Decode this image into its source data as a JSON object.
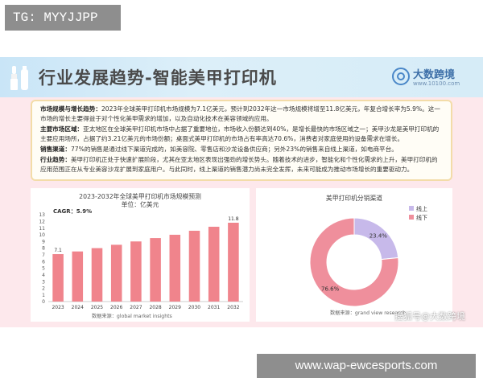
{
  "overlay": {
    "top_label": "TG: MYYJJPP",
    "bottom_url": "www.wap-ewcesports.com",
    "watermark": "搜狐号@大数跨境"
  },
  "banner": {
    "title": "行业发展趋势-智能美甲打印机",
    "brand_name": "大数跨境",
    "brand_url": "www.10100.com"
  },
  "summary": [
    {
      "label": "市场规模与增长趋势：",
      "text": "2023年全球美甲打印机市场规模为7.1亿美元，预计到2032年这一市场规模将增至11.8亿美元，年复合增长率为5.9%。这一市场的增长主要得益于对个性化美甲需求的增加，以及自动化技术在美容领域的应用。"
    },
    {
      "label": "主要市场区域：",
      "text": "亚太地区在全球美甲打印机市场中占据了重要地位，市场收入份额达到40%，是增长最快的市场区域之一；美甲沙龙是美甲打印机的主要应用场所，占据了约3.21亿美元的市场份额；桌面式美甲打印机的市场占有率高达70.6%，消费者对家庭使用的设备需求在增长。"
    },
    {
      "label": "销售渠道：",
      "text": "77%的销售是通过线下渠道完成的，如美容院、零售店和沙龙设备供应商；另外23%的销售来自线上渠道，如电商平台。"
    },
    {
      "label": "行业趋势：",
      "text": "美甲打印机正处于快速扩展阶段，尤其在亚太地区表现出强劲的增长势头。随着技术的进步，智能化和个性化需求的上升，美甲打印机的应用范围正在从专业美容沙龙扩展到家庭用户。与此同时，线上渠道的销售潜力尚未完全发挥，未来可能成为推动市场增长的重要驱动力。"
    }
  ],
  "bar_panel": {
    "cagr": "CAGR：5.9%",
    "source": "数据来源：global market insights"
  },
  "pie_panel": {
    "source": "数据来源：grand view research"
  },
  "chart_data": [
    {
      "type": "bar",
      "title": "2023-2032年全球美甲打印机市场规模预测",
      "subtitle": "单位：亿美元",
      "categories": [
        "2023",
        "2024",
        "2025",
        "2026",
        "2027",
        "2028",
        "2029",
        "2030",
        "2031",
        "2032"
      ],
      "values": [
        7.1,
        7.5,
        8.0,
        8.5,
        9.0,
        9.5,
        10.0,
        10.6,
        11.2,
        11.8
      ],
      "value_labels": {
        "0": "7.1",
        "9": "11.8"
      },
      "ylim": [
        0,
        13
      ],
      "yticks": [
        0,
        1,
        2,
        3,
        4,
        5,
        6,
        7,
        8,
        9,
        10,
        11,
        12,
        13
      ],
      "grid": false,
      "color": "#f0848c"
    },
    {
      "type": "pie",
      "title": "美甲打印机分销渠道",
      "donut": true,
      "slices": [
        {
          "name": "线上",
          "value": 23.4,
          "label": "23.4%",
          "color": "#c7b9ea"
        },
        {
          "name": "线下",
          "value": 76.6,
          "label": "76.6%",
          "color": "#ef8f9c"
        }
      ],
      "legend": "top-right"
    }
  ]
}
